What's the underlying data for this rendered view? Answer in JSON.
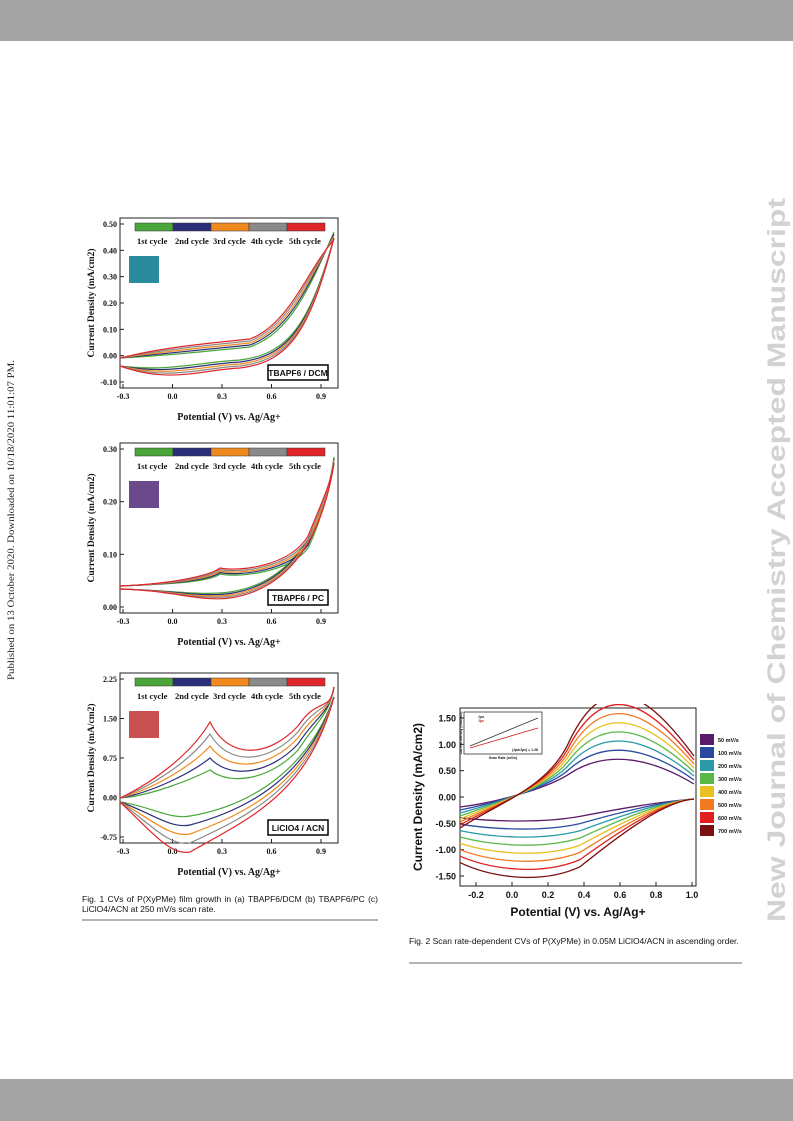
{
  "journal_watermark": "New Journal of Chemistry Accepted Manuscript",
  "published_note": "Published on 13 October 2020. Downloaded on 10/18/2020 11:01:07 PM.",
  "legend_cycles": [
    {
      "label": "1st cycle",
      "color": "#4aa63a"
    },
    {
      "label": "2nd cycle",
      "color": "#2b2f7a"
    },
    {
      "label": "3rd cycle",
      "color": "#f08a1e"
    },
    {
      "label": "4th cycle",
      "color": "#8a8a8a"
    },
    {
      "label": "5th cycle",
      "color": "#e0262a"
    }
  ],
  "fig1": {
    "xlabel": "Potential (V) vs. Ag/Ag+",
    "ylabel": "Current Density (mA/cm2)",
    "xticks": [
      "-0.3",
      "0.0",
      "0.3",
      "0.6",
      "0.9"
    ],
    "panels": [
      {
        "solvent": "TBAPF6 / DCM",
        "yticks": [
          "0.50",
          "0.40",
          "0.30",
          "0.20",
          "0.10",
          "0.00",
          "-0.10"
        ],
        "swatch": "#2a8a9e"
      },
      {
        "solvent": "TBAPF6 / PC",
        "yticks": [
          "0.30",
          "0.20",
          "0.10",
          "0.00"
        ],
        "swatch": "#6a4a8a"
      },
      {
        "solvent": "LiClO4 / ACN",
        "yticks": [
          "2.25",
          "1.50",
          "0.75",
          "0.00",
          "-0.75"
        ],
        "swatch": "#c85050"
      }
    ],
    "caption": "Fig. 1 CVs of P(XyPMe) film growth in (a) TBAPF6/DCM (b) TBAPF6/PC (c) LiClO4/ACN at 250 mV/s scan rate."
  },
  "fig2": {
    "xlabel": "Potential (V) vs. Ag/Ag+",
    "ylabel": "Current Density (mA/cm2)",
    "xticks": [
      "-0.2",
      "0.0",
      "0.2",
      "0.4",
      "0.6",
      "0.8",
      "1.0"
    ],
    "yticks": [
      "1.50",
      "1.00",
      "0.50",
      "0.00",
      "-0.50",
      "-1.00",
      "-1.50"
    ],
    "legend": [
      {
        "label": "50 mV/s",
        "color": "#5a1a6a"
      },
      {
        "label": "100 mV/s",
        "color": "#2a4aa0"
      },
      {
        "label": "200 mV/s",
        "color": "#2a9aa8"
      },
      {
        "label": "300 mV/s",
        "color": "#5ab848"
      },
      {
        "label": "400 mV/s",
        "color": "#e8c020"
      },
      {
        "label": "500 mV/s",
        "color": "#f07a20"
      },
      {
        "label": "600 mV/s",
        "color": "#e02020"
      },
      {
        "label": "700 mV/s",
        "color": "#7a1010"
      }
    ],
    "inset": {
      "xlabel": "Scan Rate (mV/s)",
      "ylabel": "Current density (mA/cm2)",
      "series": [
        "Jpa",
        "Jpc"
      ],
      "ratio": "|Jpa/Jpc| = 1.28"
    },
    "caption": "Fig. 2 Scan rate-dependent CVs of P(XyPMe) in 0.05M LiClO4/ACN in ascending order."
  }
}
